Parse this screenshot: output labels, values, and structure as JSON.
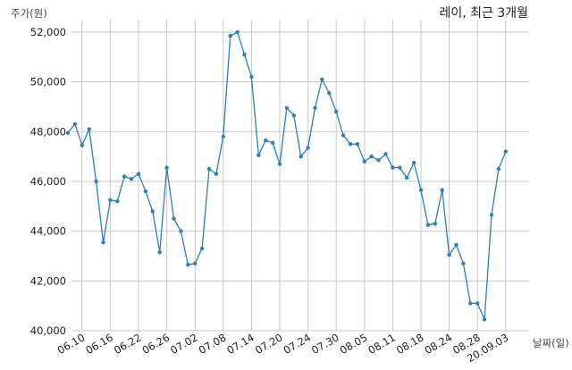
{
  "chart_data": {
    "type": "line",
    "title": "레이, 최근 3개월",
    "ylabel": "주가(원)",
    "xlabel": "날짜(일)",
    "ylim": [
      40000,
      52500
    ],
    "yticks": [
      40000,
      42000,
      44000,
      46000,
      48000,
      50000,
      52000
    ],
    "ytick_labels": [
      "40,000",
      "42,000",
      "44,000",
      "46,000",
      "48,000",
      "50,000",
      "52,000"
    ],
    "xtick_labels": [
      "06.10",
      "06.16",
      "06.22",
      "06.26",
      "07.02",
      "07.08",
      "07.14",
      "07.20",
      "07.24",
      "07.30",
      "08.05",
      "08.11",
      "08.18",
      "08.24",
      "08.28",
      "20.09.03"
    ],
    "xtick_index": [
      2,
      6,
      10,
      14,
      18,
      22,
      26,
      30,
      34,
      38,
      42,
      46,
      50,
      54,
      58,
      62
    ],
    "grid": true,
    "color": "#2e7fb4",
    "series": [
      {
        "values": [
          47950,
          48300,
          47450,
          48100,
          46000,
          43550,
          45250,
          45200,
          46200,
          46100,
          46300,
          45600,
          44800,
          43150,
          46550,
          44500,
          44000,
          42650,
          42700,
          43300,
          46500,
          46300,
          47800,
          51850,
          52000,
          51100,
          50200,
          47050,
          47650,
          47550,
          46700,
          48950,
          48650,
          47000,
          47350,
          48950,
          50100,
          49550,
          48800,
          47850,
          47500,
          47500,
          46800,
          47000,
          46850,
          47100,
          46550,
          46550,
          46150,
          46750,
          45650,
          44250,
          44300,
          45650,
          43050,
          43450,
          42700,
          41100,
          41100,
          40450,
          44650,
          46500,
          47200
        ]
      }
    ]
  }
}
